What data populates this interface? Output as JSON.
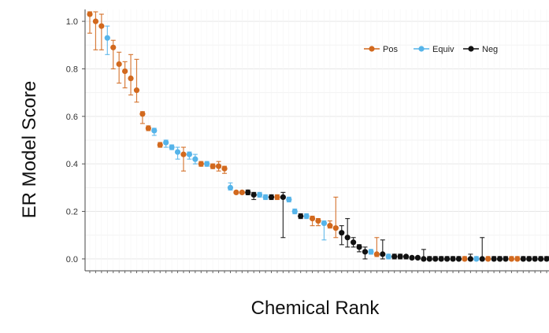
{
  "chart_data": {
    "type": "scatter",
    "xlabel": "Chemical Rank",
    "ylabel": "ER Model Score",
    "ylim": [
      -0.05,
      1.05
    ],
    "yticks": [
      "0.0",
      "0.2",
      "0.4",
      "0.6",
      "0.8",
      "1.0"
    ],
    "grid": true,
    "legend_position": "top-right",
    "legend": [
      {
        "name": "Pos",
        "color": "#d2691e"
      },
      {
        "name": "Equiv",
        "color": "#56b4e9"
      },
      {
        "name": "Neg",
        "color": "#111111"
      }
    ],
    "points": [
      {
        "x": 1,
        "y": 1.03,
        "lo": 0.95,
        "hi": 1.04,
        "group": "Pos"
      },
      {
        "x": 2,
        "y": 1.0,
        "lo": 0.88,
        "hi": 1.04,
        "group": "Pos"
      },
      {
        "x": 3,
        "y": 0.98,
        "lo": 0.88,
        "hi": 1.03,
        "group": "Pos"
      },
      {
        "x": 4,
        "y": 0.93,
        "lo": 0.86,
        "hi": 0.98,
        "group": "Equiv"
      },
      {
        "x": 5,
        "y": 0.89,
        "lo": 0.8,
        "hi": 0.92,
        "group": "Pos"
      },
      {
        "x": 6,
        "y": 0.82,
        "lo": 0.74,
        "hi": 0.87,
        "group": "Pos"
      },
      {
        "x": 7,
        "y": 0.79,
        "lo": 0.72,
        "hi": 0.83,
        "group": "Pos"
      },
      {
        "x": 8,
        "y": 0.76,
        "lo": 0.69,
        "hi": 0.86,
        "group": "Pos"
      },
      {
        "x": 9,
        "y": 0.71,
        "lo": 0.66,
        "hi": 0.84,
        "group": "Pos"
      },
      {
        "x": 10,
        "y": 0.61,
        "lo": 0.57,
        "hi": 0.62,
        "group": "Pos"
      },
      {
        "x": 11,
        "y": 0.55,
        "lo": 0.54,
        "hi": 0.56,
        "group": "Pos"
      },
      {
        "x": 12,
        "y": 0.54,
        "lo": 0.52,
        "hi": 0.55,
        "group": "Equiv"
      },
      {
        "x": 13,
        "y": 0.48,
        "lo": 0.47,
        "hi": 0.49,
        "group": "Pos"
      },
      {
        "x": 14,
        "y": 0.49,
        "lo": 0.47,
        "hi": 0.5,
        "group": "Equiv"
      },
      {
        "x": 15,
        "y": 0.47,
        "lo": 0.46,
        "hi": 0.48,
        "group": "Equiv"
      },
      {
        "x": 16,
        "y": 0.45,
        "lo": 0.42,
        "hi": 0.47,
        "group": "Equiv"
      },
      {
        "x": 17,
        "y": 0.44,
        "lo": 0.37,
        "hi": 0.47,
        "group": "Pos"
      },
      {
        "x": 18,
        "y": 0.44,
        "lo": 0.42,
        "hi": 0.45,
        "group": "Equiv"
      },
      {
        "x": 19,
        "y": 0.42,
        "lo": 0.4,
        "hi": 0.44,
        "group": "Equiv"
      },
      {
        "x": 20,
        "y": 0.4,
        "lo": 0.39,
        "hi": 0.41,
        "group": "Pos"
      },
      {
        "x": 21,
        "y": 0.4,
        "lo": 0.39,
        "hi": 0.41,
        "group": "Equiv"
      },
      {
        "x": 22,
        "y": 0.39,
        "lo": 0.38,
        "hi": 0.4,
        "group": "Pos"
      },
      {
        "x": 23,
        "y": 0.39,
        "lo": 0.37,
        "hi": 0.41,
        "group": "Pos"
      },
      {
        "x": 24,
        "y": 0.38,
        "lo": 0.36,
        "hi": 0.39,
        "group": "Pos"
      },
      {
        "x": 25,
        "y": 0.3,
        "lo": 0.29,
        "hi": 0.32,
        "group": "Equiv"
      },
      {
        "x": 26,
        "y": 0.28,
        "lo": 0.275,
        "hi": 0.285,
        "group": "Pos"
      },
      {
        "x": 27,
        "y": 0.28,
        "lo": 0.275,
        "hi": 0.285,
        "group": "Pos"
      },
      {
        "x": 28,
        "y": 0.28,
        "lo": 0.27,
        "hi": 0.29,
        "group": "Neg"
      },
      {
        "x": 29,
        "y": 0.27,
        "lo": 0.25,
        "hi": 0.28,
        "group": "Neg"
      },
      {
        "x": 30,
        "y": 0.27,
        "lo": 0.26,
        "hi": 0.28,
        "group": "Equiv"
      },
      {
        "x": 31,
        "y": 0.26,
        "lo": 0.25,
        "hi": 0.27,
        "group": "Equiv"
      },
      {
        "x": 32,
        "y": 0.26,
        "lo": 0.25,
        "hi": 0.27,
        "group": "Neg"
      },
      {
        "x": 33,
        "y": 0.26,
        "lo": 0.25,
        "hi": 0.27,
        "group": "Pos"
      },
      {
        "x": 34,
        "y": 0.26,
        "lo": 0.09,
        "hi": 0.28,
        "group": "Neg"
      },
      {
        "x": 35,
        "y": 0.25,
        "lo": 0.24,
        "hi": 0.26,
        "group": "Equiv"
      },
      {
        "x": 36,
        "y": 0.2,
        "lo": 0.19,
        "hi": 0.21,
        "group": "Equiv"
      },
      {
        "x": 37,
        "y": 0.18,
        "lo": 0.17,
        "hi": 0.19,
        "group": "Neg"
      },
      {
        "x": 38,
        "y": 0.18,
        "lo": 0.17,
        "hi": 0.19,
        "group": "Equiv"
      },
      {
        "x": 39,
        "y": 0.17,
        "lo": 0.14,
        "hi": 0.18,
        "group": "Pos"
      },
      {
        "x": 40,
        "y": 0.16,
        "lo": 0.14,
        "hi": 0.17,
        "group": "Pos"
      },
      {
        "x": 41,
        "y": 0.15,
        "lo": 0.08,
        "hi": 0.16,
        "group": "Equiv"
      },
      {
        "x": 42,
        "y": 0.14,
        "lo": 0.13,
        "hi": 0.16,
        "group": "Pos"
      },
      {
        "x": 43,
        "y": 0.13,
        "lo": 0.09,
        "hi": 0.26,
        "group": "Pos"
      },
      {
        "x": 44,
        "y": 0.11,
        "lo": 0.06,
        "hi": 0.14,
        "group": "Neg"
      },
      {
        "x": 45,
        "y": 0.09,
        "lo": 0.05,
        "hi": 0.17,
        "group": "Neg"
      },
      {
        "x": 46,
        "y": 0.07,
        "lo": 0.05,
        "hi": 0.09,
        "group": "Neg"
      },
      {
        "x": 47,
        "y": 0.05,
        "lo": 0.03,
        "hi": 0.06,
        "group": "Neg"
      },
      {
        "x": 48,
        "y": 0.03,
        "lo": 0.0,
        "hi": 0.05,
        "group": "Neg"
      },
      {
        "x": 49,
        "y": 0.03,
        "lo": 0.02,
        "hi": 0.04,
        "group": "Equiv"
      },
      {
        "x": 50,
        "y": 0.02,
        "lo": 0.01,
        "hi": 0.09,
        "group": "Pos"
      },
      {
        "x": 51,
        "y": 0.02,
        "lo": 0.0,
        "hi": 0.08,
        "group": "Neg"
      },
      {
        "x": 52,
        "y": 0.01,
        "lo": 0.0,
        "hi": 0.02,
        "group": "Equiv"
      },
      {
        "x": 53,
        "y": 0.01,
        "lo": 0.0,
        "hi": 0.02,
        "group": "Neg"
      },
      {
        "x": 54,
        "y": 0.01,
        "lo": 0.0,
        "hi": 0.02,
        "group": "Neg"
      },
      {
        "x": 55,
        "y": 0.01,
        "lo": 0.0,
        "hi": 0.015,
        "group": "Neg"
      },
      {
        "x": 56,
        "y": 0.005,
        "lo": 0.0,
        "hi": 0.01,
        "group": "Neg"
      },
      {
        "x": 57,
        "y": 0.005,
        "lo": 0.0,
        "hi": 0.01,
        "group": "Neg"
      },
      {
        "x": 58,
        "y": 0.0,
        "lo": 0.0,
        "hi": 0.04,
        "group": "Neg"
      },
      {
        "x": 59,
        "y": 0.0,
        "lo": 0.0,
        "hi": 0.01,
        "group": "Neg"
      },
      {
        "x": 60,
        "y": 0.0,
        "lo": 0.0,
        "hi": 0.01,
        "group": "Neg"
      },
      {
        "x": 61,
        "y": 0.0,
        "lo": 0.0,
        "hi": 0.01,
        "group": "Neg"
      },
      {
        "x": 62,
        "y": 0.0,
        "lo": 0.0,
        "hi": 0.01,
        "group": "Neg"
      },
      {
        "x": 63,
        "y": 0.0,
        "lo": 0.0,
        "hi": 0.01,
        "group": "Neg"
      },
      {
        "x": 64,
        "y": 0.0,
        "lo": 0.0,
        "hi": 0.01,
        "group": "Neg"
      },
      {
        "x": 65,
        "y": 0.0,
        "lo": 0.0,
        "hi": 0.01,
        "group": "Pos"
      },
      {
        "x": 66,
        "y": 0.0,
        "lo": 0.0,
        "hi": 0.02,
        "group": "Neg"
      },
      {
        "x": 67,
        "y": 0.0,
        "lo": 0.0,
        "hi": 0.01,
        "group": "Equiv"
      },
      {
        "x": 68,
        "y": 0.0,
        "lo": 0.0,
        "hi": 0.09,
        "group": "Neg"
      },
      {
        "x": 69,
        "y": 0.0,
        "lo": 0.0,
        "hi": 0.01,
        "group": "Pos"
      },
      {
        "x": 70,
        "y": 0.0,
        "lo": 0.0,
        "hi": 0.01,
        "group": "Neg"
      },
      {
        "x": 71,
        "y": 0.0,
        "lo": 0.0,
        "hi": 0.01,
        "group": "Neg"
      },
      {
        "x": 72,
        "y": 0.0,
        "lo": 0.0,
        "hi": 0.01,
        "group": "Neg"
      },
      {
        "x": 73,
        "y": 0.0,
        "lo": 0.0,
        "hi": 0.01,
        "group": "Pos"
      },
      {
        "x": 74,
        "y": 0.0,
        "lo": 0.0,
        "hi": 0.01,
        "group": "Pos"
      },
      {
        "x": 75,
        "y": 0.0,
        "lo": 0.0,
        "hi": 0.01,
        "group": "Neg"
      },
      {
        "x": 76,
        "y": 0.0,
        "lo": 0.0,
        "hi": 0.01,
        "group": "Neg"
      },
      {
        "x": 77,
        "y": 0.0,
        "lo": 0.0,
        "hi": 0.01,
        "group": "Neg"
      },
      {
        "x": 78,
        "y": 0.0,
        "lo": 0.0,
        "hi": 0.01,
        "group": "Neg"
      },
      {
        "x": 79,
        "y": 0.0,
        "lo": 0.0,
        "hi": 0.01,
        "group": "Neg"
      }
    ]
  }
}
